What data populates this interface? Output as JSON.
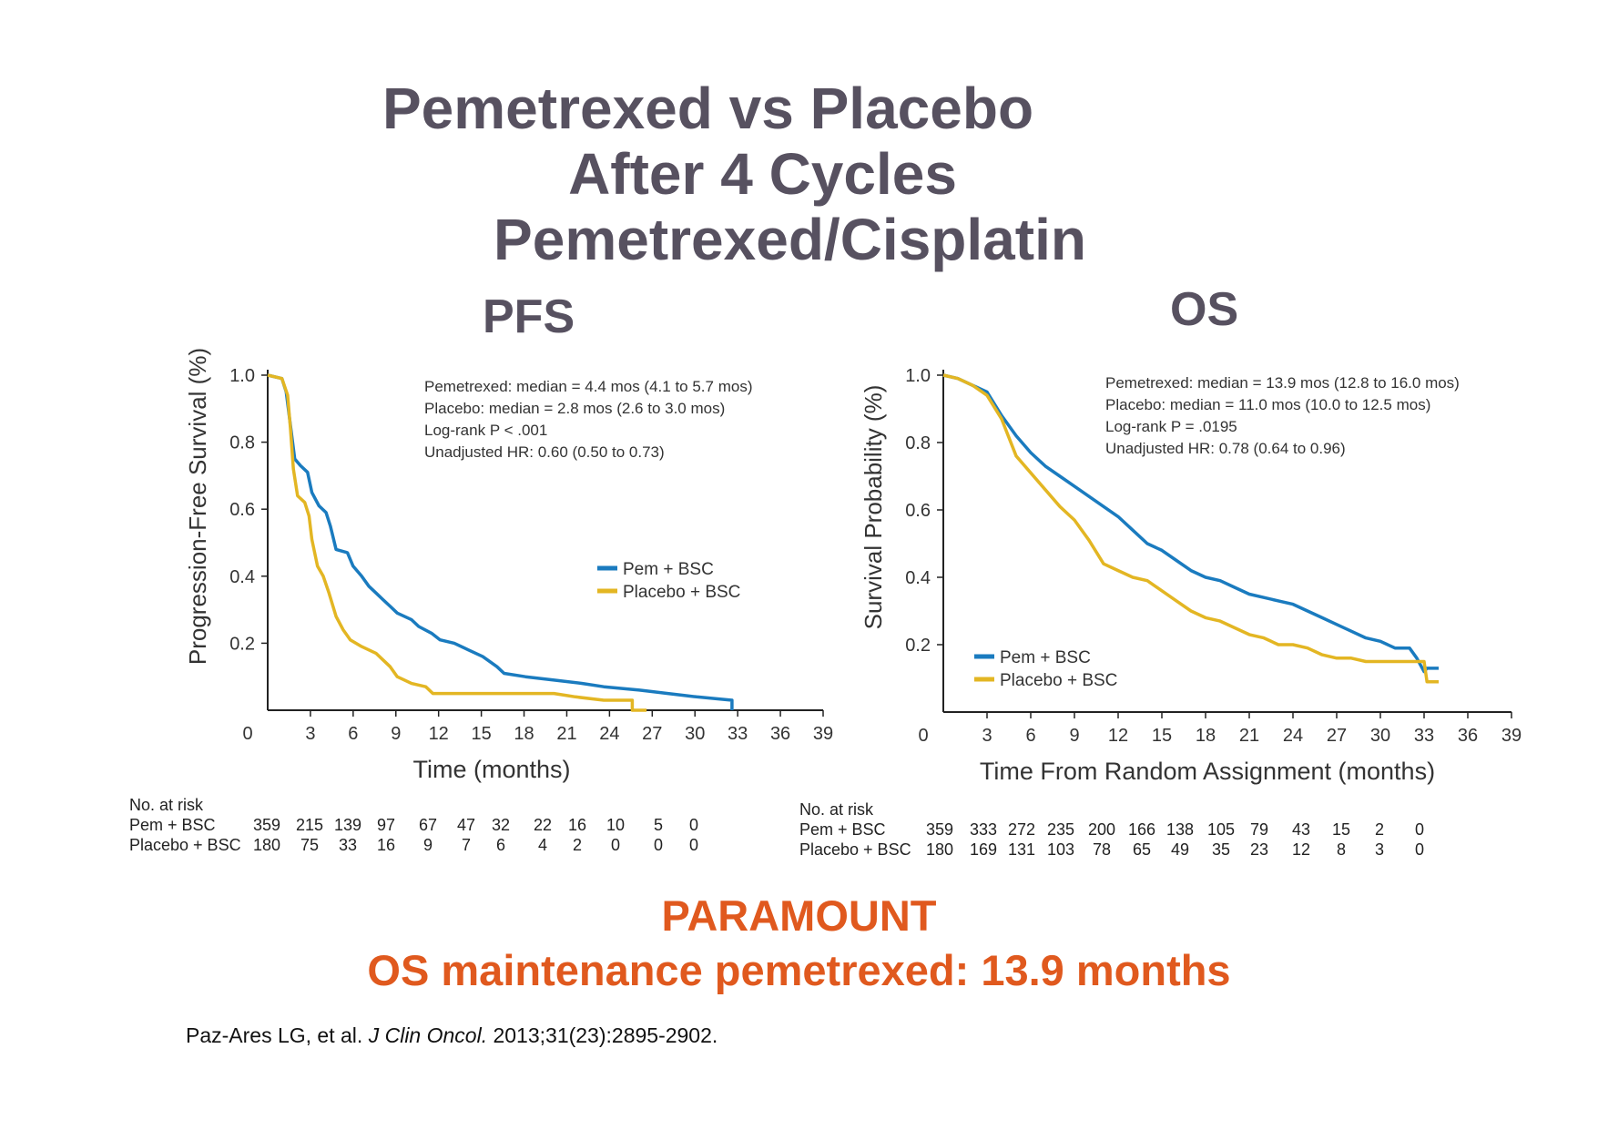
{
  "title_lines": [
    "Pemetrexed vs Placebo",
    "After 4 Cycles",
    "Pemetrexed/Cisplatin"
  ],
  "footer": {
    "line1": "PARAMOUNT",
    "line2": "OS maintenance pemetrexed: 13.9 months",
    "citation_author": "Paz-Ares LG, et al.",
    "citation_journal": "J Clin Oncol.",
    "citation_ref": "2013;31(23):2895-2902."
  },
  "colors": {
    "pem": "#1a7bbf",
    "placebo": "#e3b623",
    "title": "#575160",
    "accent": "#e0591e"
  },
  "chart_data": [
    {
      "type": "line",
      "title": "PFS",
      "xlabel": "Time (months)",
      "ylabel": "Progression-Free Survival (%)",
      "xlim": [
        0,
        39
      ],
      "ylim": [
        0,
        1.0
      ],
      "x_ticks": [
        "0",
        "3",
        "6",
        "9",
        "12",
        "15",
        "18",
        "21",
        "24",
        "27",
        "30",
        "33",
        "36",
        "39"
      ],
      "y_ticks": [
        "0.2",
        "0.4",
        "0.6",
        "0.8",
        "1.0"
      ],
      "stats": [
        "Pemetrexed: median = 4.4 mos (4.1 to 5.7 mos)",
        "Placebo: median = 2.8 mos (2.6 to 3.0 mos)",
        "Log-rank P < .001",
        "Unadjusted HR: 0.60 (0.50 to 0.73)"
      ],
      "legend_position": "right",
      "series": [
        {
          "name": "Pem + BSC",
          "color": "#1a7bbf",
          "points": [
            [
              0,
              1.0
            ],
            [
              1,
              0.99
            ],
            [
              1.3,
              0.95
            ],
            [
              1.6,
              0.85
            ],
            [
              1.9,
              0.75
            ],
            [
              2.3,
              0.73
            ],
            [
              2.8,
              0.71
            ],
            [
              3.1,
              0.65
            ],
            [
              3.6,
              0.61
            ],
            [
              4.1,
              0.59
            ],
            [
              4.4,
              0.55
            ],
            [
              4.8,
              0.48
            ],
            [
              5.6,
              0.47
            ],
            [
              6.0,
              0.43
            ],
            [
              6.6,
              0.4
            ],
            [
              7.1,
              0.37
            ],
            [
              7.6,
              0.35
            ],
            [
              8.1,
              0.33
            ],
            [
              8.6,
              0.31
            ],
            [
              9.1,
              0.29
            ],
            [
              10.1,
              0.27
            ],
            [
              10.6,
              0.25
            ],
            [
              11.5,
              0.23
            ],
            [
              12.1,
              0.21
            ],
            [
              13.1,
              0.2
            ],
            [
              14.1,
              0.18
            ],
            [
              15.1,
              0.16
            ],
            [
              16.1,
              0.13
            ],
            [
              16.6,
              0.11
            ],
            [
              18.1,
              0.1
            ],
            [
              20.1,
              0.09
            ],
            [
              22.1,
              0.08
            ],
            [
              23.6,
              0.07
            ],
            [
              26.1,
              0.06
            ],
            [
              28.1,
              0.05
            ],
            [
              30.1,
              0.04
            ],
            [
              32.6,
              0.03
            ],
            [
              32.6,
              0.0
            ]
          ]
        },
        {
          "name": "Placebo + BSC",
          "color": "#e3b623",
          "points": [
            [
              0,
              1.0
            ],
            [
              1,
              0.99
            ],
            [
              1.4,
              0.94
            ],
            [
              1.6,
              0.84
            ],
            [
              1.8,
              0.72
            ],
            [
              2.1,
              0.64
            ],
            [
              2.6,
              0.62
            ],
            [
              2.9,
              0.58
            ],
            [
              3.1,
              0.51
            ],
            [
              3.5,
              0.43
            ],
            [
              3.9,
              0.4
            ],
            [
              4.3,
              0.35
            ],
            [
              4.8,
              0.28
            ],
            [
              5.3,
              0.24
            ],
            [
              5.8,
              0.21
            ],
            [
              6.6,
              0.19
            ],
            [
              7.6,
              0.17
            ],
            [
              8.1,
              0.15
            ],
            [
              8.6,
              0.13
            ],
            [
              9.1,
              0.1
            ],
            [
              10.1,
              0.08
            ],
            [
              11.1,
              0.07
            ],
            [
              11.6,
              0.05
            ],
            [
              13.1,
              0.05
            ],
            [
              20.1,
              0.05
            ],
            [
              21.6,
              0.04
            ],
            [
              23.6,
              0.03
            ],
            [
              25.6,
              0.03
            ],
            [
              25.6,
              0.0
            ],
            [
              26.6,
              0.0
            ]
          ]
        }
      ],
      "at_risk": {
        "label": "No. at risk",
        "rows": [
          {
            "name": "Pem + BSC",
            "values": [
              "359",
              "215",
              "139",
              "97",
              "67",
              "47",
              "32",
              "22",
              "16",
              "10",
              "5",
              "0"
            ]
          },
          {
            "name": "Placebo + BSC",
            "values": [
              "180",
              "75",
              "33",
              "16",
              "9",
              "7",
              "6",
              "4",
              "2",
              "0",
              "0",
              "0"
            ]
          }
        ]
      }
    },
    {
      "type": "line",
      "title": "OS",
      "xlabel": "Time From Random Assignment (months)",
      "ylabel": "Survival Probability (%)",
      "xlim": [
        0,
        39
      ],
      "ylim": [
        0,
        1.0
      ],
      "x_ticks": [
        "0",
        "3",
        "6",
        "9",
        "12",
        "15",
        "18",
        "21",
        "24",
        "27",
        "30",
        "33",
        "36",
        "39"
      ],
      "y_ticks": [
        "0.2",
        "0.4",
        "0.6",
        "0.8",
        "1.0"
      ],
      "stats": [
        "Pemetrexed: median = 13.9 mos (12.8 to 16.0 mos)",
        "Placebo: median = 11.0 mos (10.0 to 12.5 mos)",
        "Log-rank P = .0195",
        "Unadjusted HR: 0.78 (0.64 to 0.96)"
      ],
      "legend_position": "bottom-left",
      "series": [
        {
          "name": "Pem + BSC",
          "color": "#1a7bbf",
          "points": [
            [
              0,
              1.0
            ],
            [
              1,
              0.99
            ],
            [
              2,
              0.97
            ],
            [
              3,
              0.95
            ],
            [
              4,
              0.88
            ],
            [
              5,
              0.82
            ],
            [
              6,
              0.77
            ],
            [
              7,
              0.73
            ],
            [
              8,
              0.7
            ],
            [
              9,
              0.67
            ],
            [
              10,
              0.64
            ],
            [
              11,
              0.61
            ],
            [
              12,
              0.58
            ],
            [
              13,
              0.54
            ],
            [
              14,
              0.5
            ],
            [
              15,
              0.48
            ],
            [
              16,
              0.45
            ],
            [
              17,
              0.42
            ],
            [
              18,
              0.4
            ],
            [
              19,
              0.39
            ],
            [
              20,
              0.37
            ],
            [
              21,
              0.35
            ],
            [
              22,
              0.34
            ],
            [
              23,
              0.33
            ],
            [
              24,
              0.32
            ],
            [
              25,
              0.3
            ],
            [
              26,
              0.28
            ],
            [
              27,
              0.26
            ],
            [
              28,
              0.24
            ],
            [
              29,
              0.22
            ],
            [
              30,
              0.21
            ],
            [
              31,
              0.19
            ],
            [
              32,
              0.19
            ],
            [
              32.5,
              0.16
            ],
            [
              33,
              0.12
            ],
            [
              33.2,
              0.13
            ],
            [
              34,
              0.13
            ]
          ]
        },
        {
          "name": "Placebo + BSC",
          "color": "#e3b623",
          "points": [
            [
              0,
              1.0
            ],
            [
              1,
              0.99
            ],
            [
              2,
              0.97
            ],
            [
              3,
              0.94
            ],
            [
              4,
              0.87
            ],
            [
              5,
              0.76
            ],
            [
              6,
              0.71
            ],
            [
              7,
              0.66
            ],
            [
              8,
              0.61
            ],
            [
              9,
              0.57
            ],
            [
              10,
              0.51
            ],
            [
              11,
              0.44
            ],
            [
              12,
              0.42
            ],
            [
              13,
              0.4
            ],
            [
              14,
              0.39
            ],
            [
              15,
              0.36
            ],
            [
              16,
              0.33
            ],
            [
              17,
              0.3
            ],
            [
              18,
              0.28
            ],
            [
              19,
              0.27
            ],
            [
              20,
              0.25
            ],
            [
              21,
              0.23
            ],
            [
              22,
              0.22
            ],
            [
              23,
              0.2
            ],
            [
              24,
              0.2
            ],
            [
              25,
              0.19
            ],
            [
              26,
              0.17
            ],
            [
              27,
              0.16
            ],
            [
              28,
              0.16
            ],
            [
              29,
              0.15
            ],
            [
              30,
              0.15
            ],
            [
              31,
              0.15
            ],
            [
              32,
              0.15
            ],
            [
              33,
              0.15
            ],
            [
              33.2,
              0.09
            ],
            [
              34,
              0.09
            ]
          ]
        }
      ],
      "at_risk": {
        "label": "No. at risk",
        "rows": [
          {
            "name": "Pem + BSC",
            "values": [
              "359",
              "333",
              "272",
              "235",
              "200",
              "166",
              "138",
              "105",
              "79",
              "43",
              "15",
              "2",
              "0"
            ]
          },
          {
            "name": "Placebo + BSC",
            "values": [
              "180",
              "169",
              "131",
              "103",
              "78",
              "65",
              "49",
              "35",
              "23",
              "12",
              "8",
              "3",
              "0"
            ]
          }
        ]
      }
    }
  ]
}
